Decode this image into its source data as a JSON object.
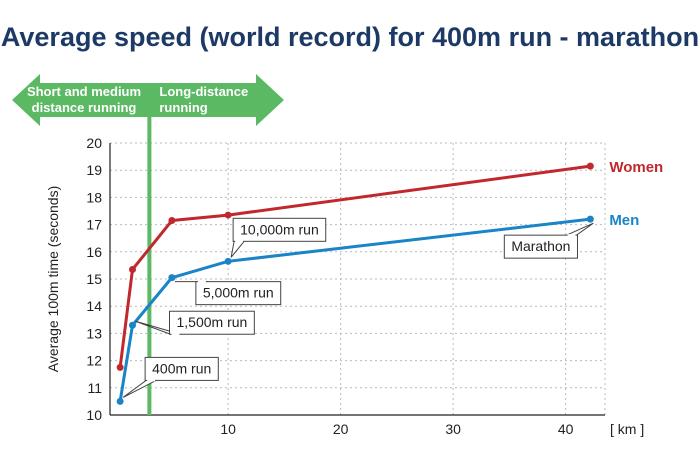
{
  "chart_data": {
    "type": "line",
    "title": "Average speed (world record) for 400m run - marathon",
    "xlabel": "",
    "ylabel": "Average 100m time (seconds)",
    "x_unit_label": "[ km ]",
    "xlim": [
      -0.5,
      43.5
    ],
    "ylim": [
      10,
      20
    ],
    "x_ticks": [
      10,
      20,
      30,
      40
    ],
    "y_ticks": [
      10,
      11,
      12,
      13,
      14,
      15,
      16,
      17,
      18,
      19,
      20
    ],
    "grid": true,
    "series": [
      {
        "name": "Women",
        "color": "#c0282d",
        "x": [
          0.4,
          1.5,
          5,
          10,
          42.195
        ],
        "y": [
          11.75,
          15.35,
          17.15,
          17.35,
          19.15
        ]
      },
      {
        "name": "Men",
        "color": "#1a84c7",
        "x": [
          0.4,
          1.5,
          5,
          10,
          42.195
        ],
        "y": [
          10.5,
          13.3,
          15.05,
          15.65,
          17.2
        ]
      }
    ],
    "annotations": [
      {
        "text": "400m run",
        "x": 0.4,
        "y": 10.5
      },
      {
        "text": "1,500m run",
        "x": 1.5,
        "y": 13.3
      },
      {
        "text": "5,000m run",
        "x": 5,
        "y": 15.05
      },
      {
        "text": "10,000m run",
        "x": 10,
        "y": 15.65
      },
      {
        "text": "Marathon",
        "x": 42.195,
        "y": 17.2
      }
    ],
    "divider": {
      "x": 3,
      "color": "#5bb964",
      "left_label_lines": [
        "Short and medium",
        "distance running"
      ],
      "right_label_lines": [
        "Long-distance",
        "running"
      ]
    }
  }
}
